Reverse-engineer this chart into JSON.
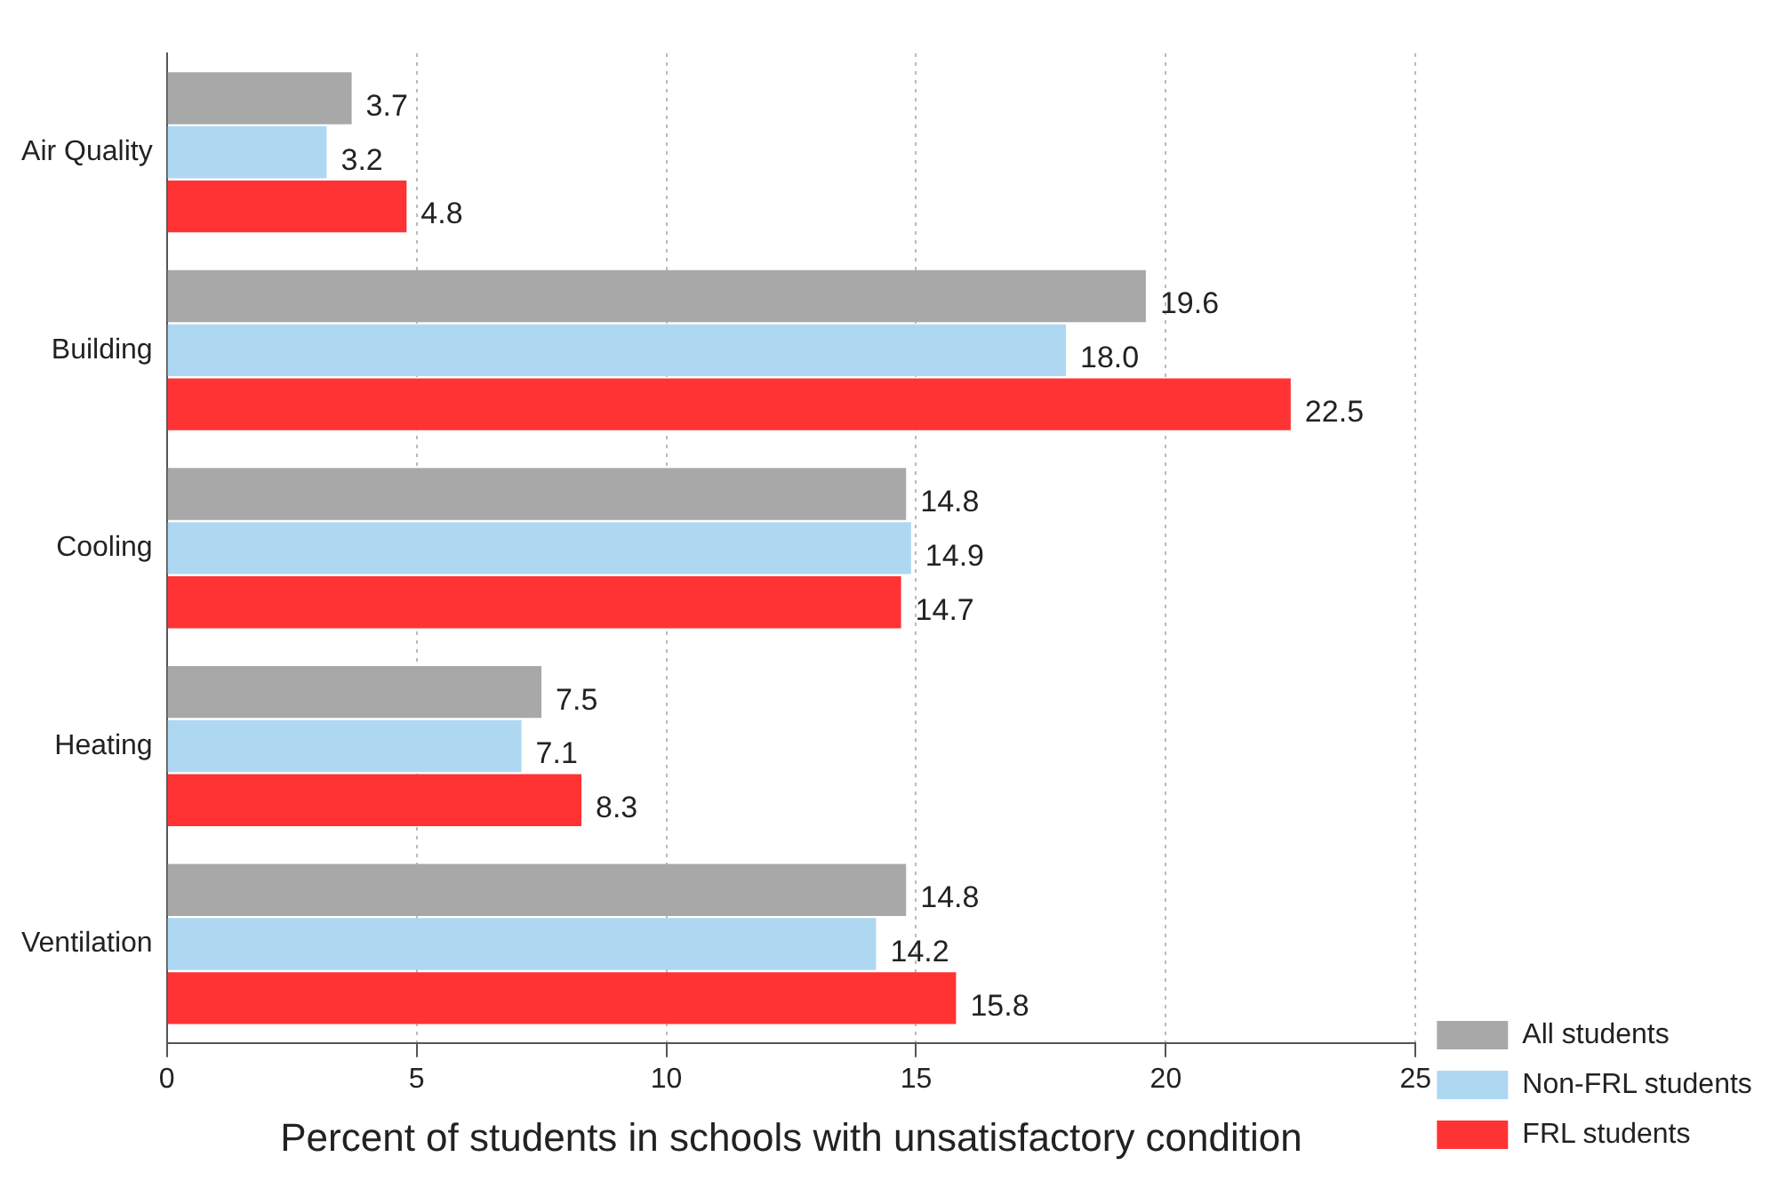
{
  "chart_data": {
    "type": "bar",
    "orientation": "horizontal",
    "xlabel": "Percent of students in schools with unsatisfactory condition",
    "categories": [
      "Air Quality",
      "Building",
      "Cooling",
      "Heating",
      "Ventilation"
    ],
    "series": [
      {
        "name": "All students",
        "color": "#a8a8a8",
        "values": [
          3.7,
          19.6,
          14.8,
          7.5,
          14.8
        ],
        "value_labels": [
          "3.7",
          "19.6",
          "14.8",
          "7.5",
          "14.8"
        ]
      },
      {
        "name": "Non-FRL students",
        "color": "#aed8f2",
        "values": [
          3.2,
          18.0,
          14.9,
          7.1,
          14.2
        ],
        "value_labels": [
          "3.2",
          "18.0",
          "14.9",
          "7.1",
          "14.2"
        ]
      },
      {
        "name": "FRL students",
        "color": "#ff3333",
        "values": [
          4.8,
          22.5,
          14.7,
          8.3,
          15.8
        ],
        "value_labels": [
          "4.8",
          "22.5",
          "14.7",
          "8.3",
          "15.8"
        ]
      }
    ],
    "xlim": [
      0,
      25
    ],
    "xticks": [
      0,
      5,
      10,
      15,
      20,
      25
    ],
    "grid": "x",
    "legend": "bottom right"
  }
}
